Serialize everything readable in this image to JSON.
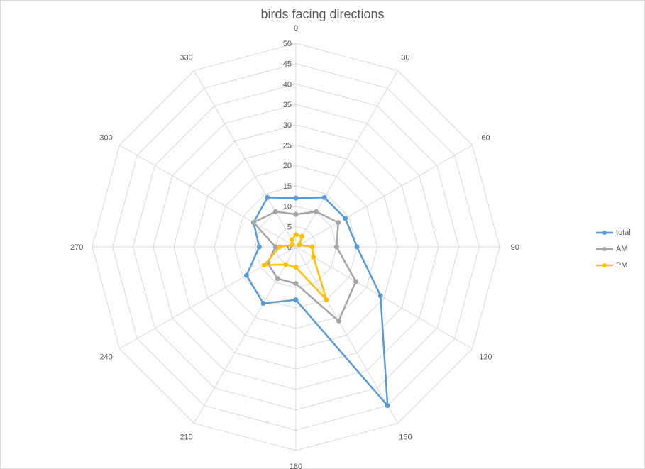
{
  "chart_data": {
    "type": "radar",
    "title": "birds facing directions",
    "categories": [
      "0",
      "330",
      "300",
      "270",
      "240",
      "210",
      "180",
      "150",
      "120",
      "90",
      "60",
      "30"
    ],
    "r_ticks": [
      "0",
      "5",
      "10",
      "15",
      "20",
      "25",
      "30",
      "35",
      "40",
      "45",
      "50"
    ],
    "rlim": [
      0,
      50
    ],
    "grid": true,
    "legend_position": "right",
    "series": [
      {
        "name": "total",
        "color": "#5b9bd5",
        "values": [
          12,
          14,
          12,
          9,
          14,
          16,
          13,
          45,
          24,
          15,
          14,
          14
        ]
      },
      {
        "name": "AM",
        "color": "#a5a5a5",
        "values": [
          8,
          10,
          12,
          5,
          8,
          9,
          9,
          21,
          17,
          10,
          12,
          10
        ]
      },
      {
        "name": "PM",
        "color": "#ffc000",
        "values": [
          3,
          2,
          1,
          4,
          9,
          5,
          5,
          15,
          5,
          4,
          1,
          3
        ]
      }
    ]
  }
}
